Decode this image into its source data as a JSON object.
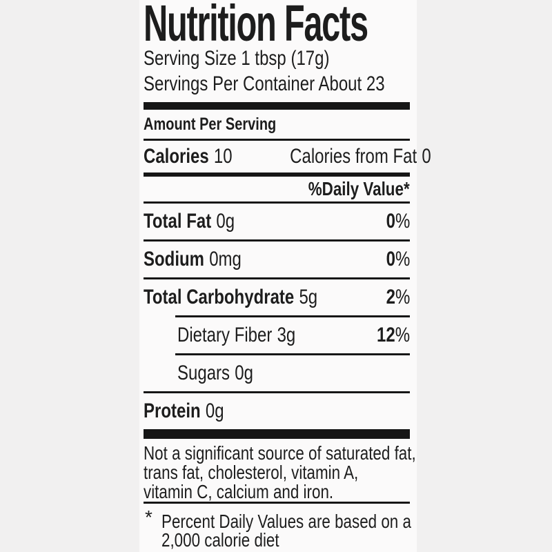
{
  "label": {
    "title": "Nutrition Facts",
    "serving_size": "Serving Size 1 tbsp (17g)",
    "servings_per_container": "Servings Per Container About 23",
    "amount_per_serving": "Amount Per Serving",
    "calories": {
      "label": "Calories",
      "value": "10",
      "from_fat_label": "Calories from Fat",
      "from_fat_value": "0"
    },
    "daily_value_header": "%Daily Value*",
    "percent_sign": "%",
    "rows": [
      {
        "name": "Total Fat",
        "amount": "0g",
        "dv": "0"
      },
      {
        "name": "Sodium",
        "amount": "0mg",
        "dv": "0"
      },
      {
        "name": "Total Carbohydrate",
        "amount": "5g",
        "dv": "2"
      },
      {
        "name": "Dietary Fiber",
        "amount": "3g",
        "dv": "12"
      },
      {
        "name": "Sugars",
        "amount": "0g",
        "dv": null
      },
      {
        "name": "Protein",
        "amount": "0g",
        "dv": null
      }
    ],
    "disclaimer_lines": [
      "Not a significant source of saturated fat,",
      "trans fat, cholesterol, vitamin A,",
      "vitamin C, calcium and iron."
    ],
    "footnote_mark": "*",
    "footnote_lines": [
      "Percent Daily Values are based on a",
      "2,000 calorie diet"
    ],
    "colors": {
      "ink": "#1d1d1d",
      "rule": "#161616",
      "label_background": "#fbfafa",
      "page_background": "#f1f0f0"
    }
  }
}
